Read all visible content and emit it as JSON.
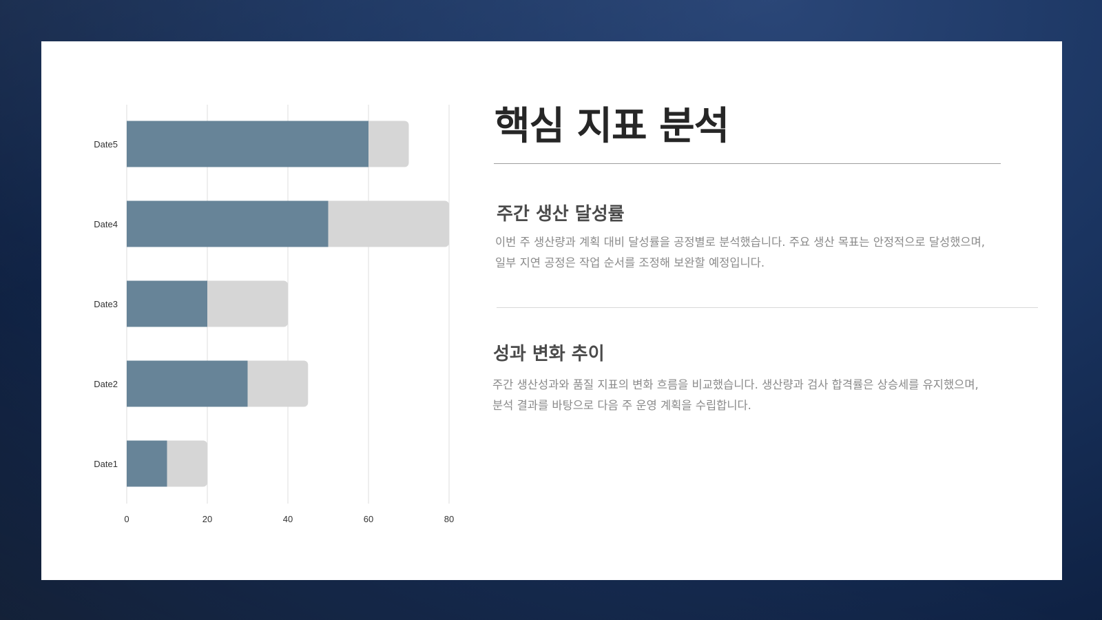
{
  "slide": {
    "title": "핵심 지표 분석",
    "sections": [
      {
        "heading": "주간 생산 달성률",
        "lines": [
          "이번 주 생산량과 계획 대비 달성률을 공정별로 분석했습니다. 주요 생산 목표는 안정적으로 달성했으며,",
          "일부 지연 공정은 작업 순서를 조정해 보완할 예정입니다."
        ]
      },
      {
        "heading": "성과 변화 추이",
        "lines": [
          "주간 생산성과와 품질 지표의 변화 흐름을 비교했습니다. 생산량과 검사 합격률은 상승세를 유지했으며,",
          "분석 결과를 바탕으로 다음 주 운영 계획을 수립합니다."
        ]
      }
    ]
  },
  "colors": {
    "background": "#1a3460",
    "card": "#ffffff",
    "bar_primary": "#678498",
    "bar_secondary": "#d6d6d6",
    "gridline": "#dddddd",
    "title": "#262626"
  },
  "chart_data": {
    "type": "bar",
    "orientation": "horizontal",
    "stacked": true,
    "categories": [
      "Date5",
      "Date4",
      "Date3",
      "Date2",
      "Date1"
    ],
    "series": [
      {
        "values": [
          60,
          50,
          20,
          30,
          10
        ],
        "color": "#678498"
      },
      {
        "values": [
          10,
          30,
          20,
          15,
          10
        ],
        "color": "#d6d6d6"
      }
    ],
    "xlim": [
      0,
      80
    ],
    "xticks": [
      0,
      20,
      40,
      60,
      80
    ],
    "grid": true,
    "legend": "none",
    "title": "",
    "xlabel": "",
    "ylabel": ""
  }
}
